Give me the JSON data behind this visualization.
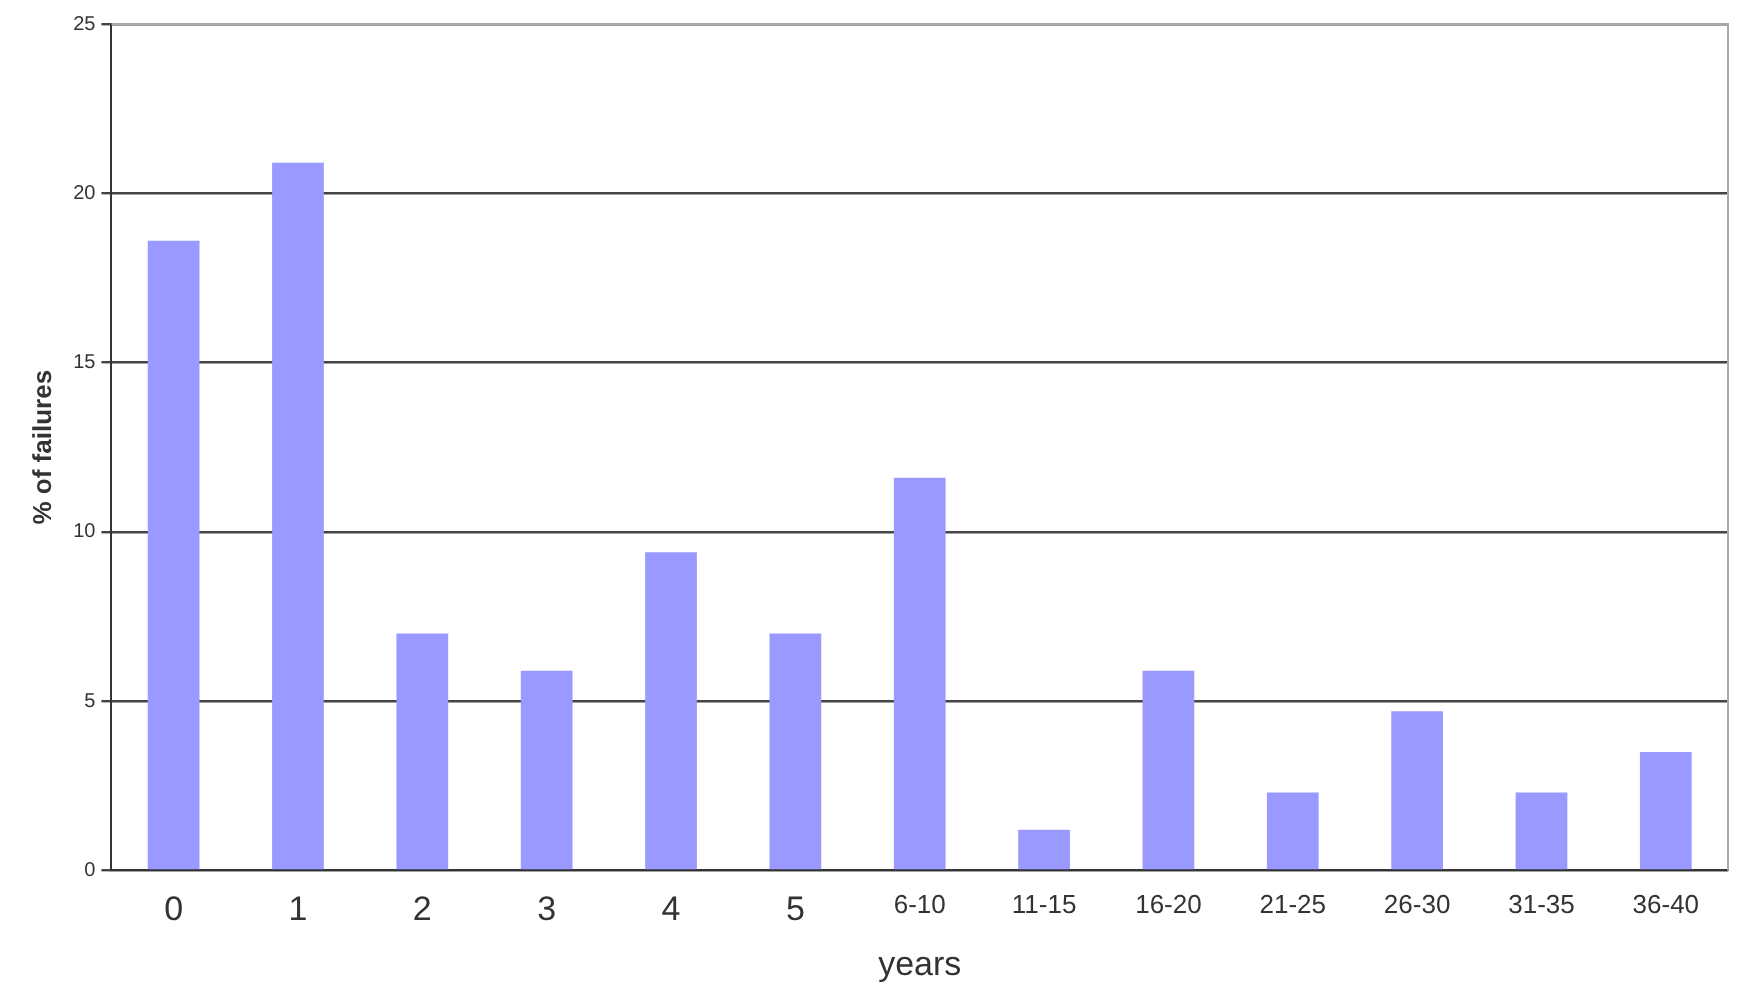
{
  "chart_data": {
    "type": "bar",
    "xlabel": "years",
    "ylabel": "% of failures",
    "categories": [
      "0",
      "1",
      "2",
      "3",
      "4",
      "5",
      "6-10",
      "11-15",
      "16-20",
      "21-25",
      "26-30",
      "31-35",
      "36-40"
    ],
    "values": [
      18.6,
      20.9,
      7.0,
      5.9,
      9.4,
      7.0,
      11.6,
      1.2,
      5.9,
      2.3,
      4.7,
      2.3,
      3.5
    ],
    "color": "#9999ff",
    "ylim": [
      0,
      25
    ],
    "yticks": [
      0,
      5,
      10,
      15,
      20,
      25
    ],
    "grid": "y"
  }
}
